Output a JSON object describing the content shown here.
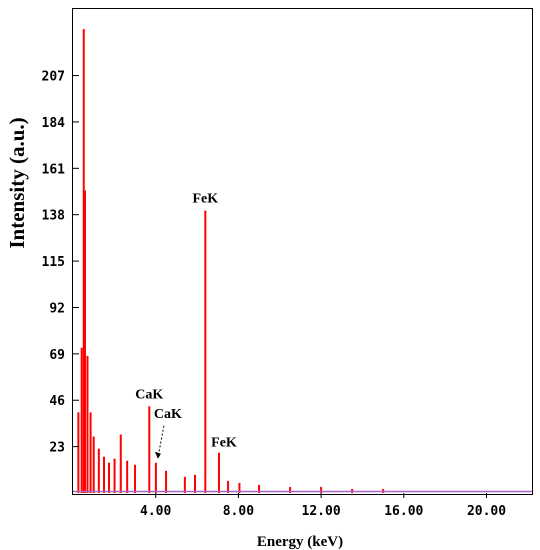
{
  "chart_data": {
    "type": "bar",
    "xlabel": "Energy (keV)",
    "ylabel": "Intensity (a.u.)",
    "xlim": [
      0.0,
      22.2
    ],
    "ylim": [
      0,
      240
    ],
    "x_ticks": [
      {
        "value": 4.0,
        "label": "4.00"
      },
      {
        "value": 8.0,
        "label": "8.00"
      },
      {
        "value": 12.0,
        "label": "12.00"
      },
      {
        "value": 16.0,
        "label": "16.00"
      },
      {
        "value": 20.0,
        "label": "20.00"
      }
    ],
    "y_ticks": [
      {
        "value": 23,
        "label": "23"
      },
      {
        "value": 46,
        "label": "46"
      },
      {
        "value": 69,
        "label": "69"
      },
      {
        "value": 92,
        "label": "92"
      },
      {
        "value": 115,
        "label": "115"
      },
      {
        "value": 138,
        "label": "138"
      },
      {
        "value": 161,
        "label": "161"
      },
      {
        "value": 184,
        "label": "184"
      },
      {
        "value": 207,
        "label": "207"
      }
    ],
    "series": [
      {
        "color": "#ff0000",
        "peaks": [
          {
            "x": 0.26,
            "y": 40
          },
          {
            "x": 0.42,
            "y": 72
          },
          {
            "x": 0.52,
            "y": 230
          },
          {
            "x": 0.58,
            "y": 150
          },
          {
            "x": 0.7,
            "y": 68
          },
          {
            "x": 0.85,
            "y": 40
          },
          {
            "x": 1.0,
            "y": 28
          },
          {
            "x": 1.25,
            "y": 22
          },
          {
            "x": 1.5,
            "y": 18
          },
          {
            "x": 1.74,
            "y": 15
          },
          {
            "x": 2.01,
            "y": 17
          },
          {
            "x": 2.31,
            "y": 29
          },
          {
            "x": 2.62,
            "y": 16
          },
          {
            "x": 3.0,
            "y": 14
          },
          {
            "x": 3.69,
            "y": 43
          },
          {
            "x": 4.01,
            "y": 15
          },
          {
            "x": 4.5,
            "y": 11
          },
          {
            "x": 5.41,
            "y": 8
          },
          {
            "x": 5.9,
            "y": 9
          },
          {
            "x": 6.4,
            "y": 140
          },
          {
            "x": 7.06,
            "y": 20
          },
          {
            "x": 7.5,
            "y": 6
          },
          {
            "x": 8.05,
            "y": 5
          },
          {
            "x": 9.0,
            "y": 4
          },
          {
            "x": 10.5,
            "y": 3
          },
          {
            "x": 12.0,
            "y": 3
          },
          {
            "x": 13.5,
            "y": 2
          },
          {
            "x": 15.0,
            "y": 2
          }
        ]
      }
    ],
    "annotations": [
      {
        "text": "CaK",
        "x": 3.69,
        "y": 43
      },
      {
        "text": "CaK",
        "x": 4.01,
        "y": 15
      },
      {
        "text": "FeK",
        "x": 6.4,
        "y": 140
      },
      {
        "text": "FeK",
        "x": 7.06,
        "y": 20
      }
    ],
    "grid": false,
    "baseline_color": "#aa66cc"
  }
}
